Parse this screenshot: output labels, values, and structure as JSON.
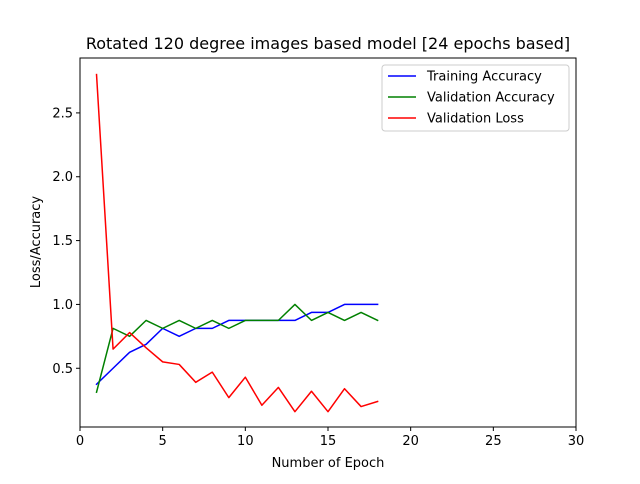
{
  "chart_data": {
    "type": "line",
    "title": "Rotated 120 degree images based model [24 epochs based]",
    "xlabel": "Number of Epoch",
    "ylabel": "Loss/Accuracy",
    "xlim": [
      0,
      30
    ],
    "ylim": [
      0.04,
      2.93
    ],
    "x_ticks": [
      0,
      5,
      10,
      15,
      20,
      25,
      30
    ],
    "y_ticks": [
      0.5,
      1.0,
      1.5,
      2.0,
      2.5
    ],
    "x_tick_labels": [
      "0",
      "5",
      "10",
      "15",
      "20",
      "25",
      "30"
    ],
    "y_tick_labels": [
      "0.5",
      "1.0",
      "1.5",
      "2.0",
      "2.5"
    ],
    "grid": false,
    "legend_position": "top-right",
    "x": [
      1,
      2,
      3,
      4,
      5,
      6,
      7,
      8,
      9,
      10,
      11,
      12,
      13,
      14,
      15,
      16,
      17,
      18
    ],
    "series": [
      {
        "name": "Training Accuracy",
        "color": "#0000ff",
        "values": [
          0.375,
          0.5,
          0.625,
          0.6875,
          0.8125,
          0.75,
          0.8125,
          0.8125,
          0.875,
          0.875,
          0.875,
          0.875,
          0.875,
          0.9375,
          0.9375,
          1.0,
          1.0,
          1.0
        ]
      },
      {
        "name": "Validation Accuracy",
        "color": "#008000",
        "values": [
          0.3125,
          0.8125,
          0.75,
          0.875,
          0.8125,
          0.875,
          0.8125,
          0.875,
          0.8125,
          0.875,
          0.875,
          0.875,
          1.0,
          0.875,
          0.9375,
          0.875,
          0.9375,
          0.875
        ]
      },
      {
        "name": "Validation Loss",
        "color": "#ff0000",
        "values": [
          2.8,
          0.65,
          0.78,
          0.66,
          0.55,
          0.53,
          0.39,
          0.47,
          0.27,
          0.43,
          0.21,
          0.35,
          0.16,
          0.32,
          0.16,
          0.34,
          0.2,
          0.24
        ]
      }
    ]
  }
}
